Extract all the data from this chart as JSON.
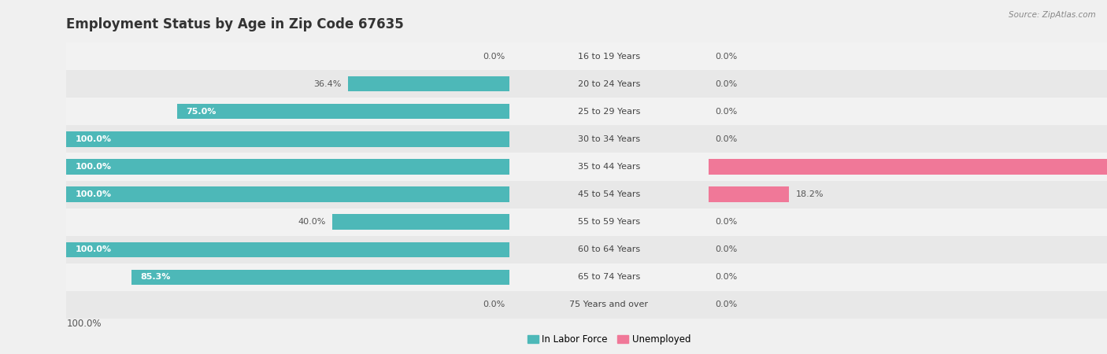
{
  "title": "Employment Status by Age in Zip Code 67635",
  "source": "Source: ZipAtlas.com",
  "age_groups": [
    "16 to 19 Years",
    "20 to 24 Years",
    "25 to 29 Years",
    "30 to 34 Years",
    "35 to 44 Years",
    "45 to 54 Years",
    "55 to 59 Years",
    "60 to 64 Years",
    "65 to 74 Years",
    "75 Years and over"
  ],
  "labor_force": [
    0.0,
    36.4,
    75.0,
    100.0,
    100.0,
    100.0,
    40.0,
    100.0,
    85.3,
    0.0
  ],
  "unemployed": [
    0.0,
    0.0,
    0.0,
    0.0,
    100.0,
    18.2,
    0.0,
    0.0,
    0.0,
    0.0
  ],
  "labor_force_color": "#4db8b8",
  "unemployed_color": "#f07898",
  "row_bg_even": "#f2f2f2",
  "row_bg_odd": "#e8e8e8",
  "title_fontsize": 12,
  "max_val": 100.0,
  "bar_height": 0.55,
  "bg_color": "#f0f0f0"
}
